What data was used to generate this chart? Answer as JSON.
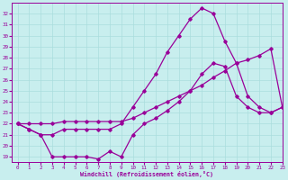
{
  "xlabel": "Windchill (Refroidissement éolien,°C)",
  "x_ticks": [
    0,
    1,
    2,
    3,
    4,
    5,
    6,
    7,
    8,
    9,
    10,
    11,
    12,
    13,
    14,
    15,
    16,
    17,
    18,
    19,
    20,
    21,
    22,
    23
  ],
  "ylim": [
    18.5,
    33
  ],
  "yticks": [
    19,
    20,
    21,
    22,
    23,
    24,
    25,
    26,
    27,
    28,
    29,
    30,
    31,
    32
  ],
  "xlim": [
    -0.5,
    23
  ],
  "background_color": "#c8eeee",
  "grid_color": "#aadddd",
  "line_color": "#990099",
  "line1_x": [
    0,
    1,
    2,
    3,
    4,
    5,
    6,
    7,
    8,
    9,
    10,
    11,
    12,
    13,
    14,
    15,
    16,
    17,
    18,
    19,
    20,
    21,
    22,
    23
  ],
  "line1_y": [
    22.0,
    21.5,
    21.0,
    19.0,
    19.0,
    19.0,
    19.0,
    18.8,
    19.5,
    19.0,
    21.0,
    22.0,
    22.5,
    23.2,
    24.0,
    25.0,
    26.5,
    27.5,
    27.2,
    24.5,
    23.5,
    23.0,
    23.0,
    23.5
  ],
  "line2_x": [
    0,
    1,
    2,
    3,
    4,
    5,
    6,
    7,
    8,
    9,
    10,
    11,
    12,
    13,
    14,
    15,
    16,
    17,
    18,
    19,
    20,
    21,
    22,
    23
  ],
  "line2_y": [
    22.0,
    21.5,
    21.0,
    21.0,
    21.5,
    21.5,
    21.5,
    21.5,
    21.5,
    22.0,
    23.5,
    25.0,
    26.5,
    28.5,
    30.0,
    31.5,
    32.5,
    32.0,
    29.5,
    27.5,
    24.5,
    23.5,
    23.0,
    23.5
  ],
  "line3_x": [
    0,
    1,
    2,
    3,
    4,
    5,
    6,
    7,
    8,
    9,
    10,
    11,
    12,
    13,
    14,
    15,
    16,
    17,
    18,
    19,
    20,
    21,
    22,
    23
  ],
  "line3_y": [
    22.0,
    22.0,
    22.0,
    22.0,
    22.2,
    22.2,
    22.2,
    22.2,
    22.2,
    22.2,
    22.5,
    23.0,
    23.5,
    24.0,
    24.5,
    25.0,
    25.5,
    26.2,
    26.8,
    27.5,
    27.8,
    28.2,
    28.8,
    23.5
  ],
  "marker": "D",
  "markersize": 1.8,
  "linewidth": 0.9
}
